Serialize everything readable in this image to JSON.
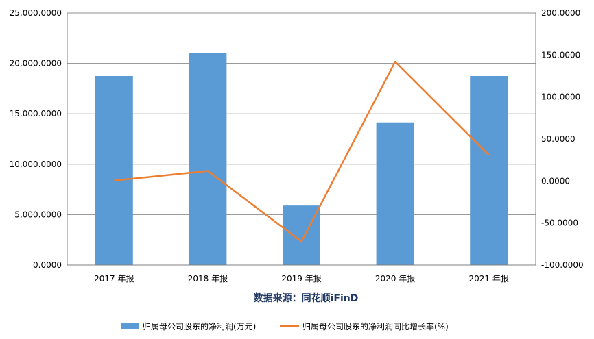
{
  "chart_data": {
    "type": "bar",
    "categories": [
      "2017 年报",
      "2018 年报",
      "2019 年报",
      "2020 年报",
      "2021 年报"
    ],
    "series": [
      {
        "name": "归属母公司股东的净利润(万元)",
        "type": "bar",
        "axis": "left",
        "color": "#5b9bd5",
        "values": [
          18750,
          21000,
          5900,
          14150,
          18750
        ]
      },
      {
        "name": "归属母公司股东的净利润同比增长率(%)",
        "type": "line",
        "axis": "right",
        "color": "#ed7d31",
        "values": [
          0.5,
          12,
          -72,
          142,
          31
        ]
      }
    ],
    "left_axis": {
      "ylim": [
        0,
        25000
      ],
      "ticks": [
        "0.0000",
        "5,000.0000",
        "10,000.0000",
        "15,000.0000",
        "20,000.0000",
        "25,000.0000"
      ]
    },
    "right_axis": {
      "ylim": [
        -100,
        200
      ],
      "ticks": [
        "-100.0000",
        "-50.0000",
        "0.0000",
        "50.0000",
        "100.0000",
        "150.0000",
        "200.0000"
      ]
    },
    "source": "数据来源：同花顺iFinD",
    "grid": true,
    "legend_position": "bottom"
  }
}
